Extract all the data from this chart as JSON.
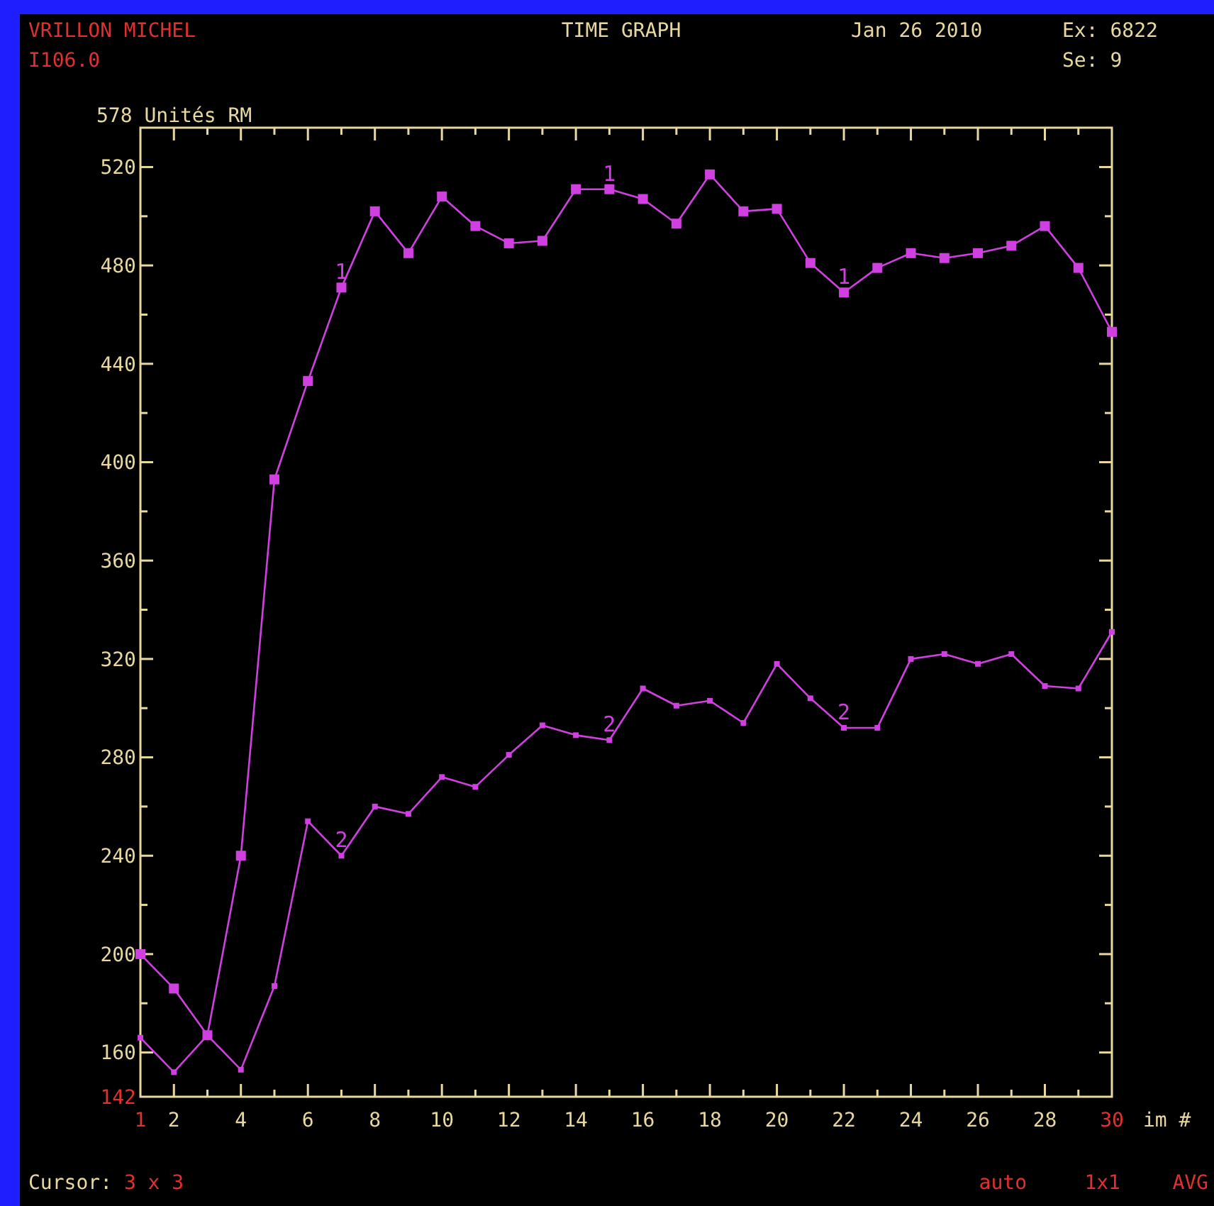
{
  "chart_data": {
    "type": "line",
    "title": "TIME GRAPH",
    "xlabel": "im #",
    "ylabel": "578 Unités RM",
    "annotations": [
      "VRILLON MICHEL",
      "I106.0",
      "Jan 26 2010",
      "Ex: 6822",
      "Se: 9",
      "Cursor: 3 x 3",
      "auto",
      "1x1",
      "AVG"
    ],
    "x": [
      1,
      2,
      3,
      4,
      5,
      6,
      7,
      8,
      9,
      10,
      11,
      12,
      13,
      14,
      15,
      16,
      17,
      18,
      19,
      20,
      21,
      22,
      23,
      24,
      25,
      26,
      27,
      28,
      29,
      30
    ],
    "series": [
      {
        "name": "1",
        "color": "#d040e0",
        "values": [
          200,
          186,
          167,
          240,
          393,
          433,
          471,
          502,
          485,
          508,
          496,
          489,
          490,
          511,
          511,
          507,
          497,
          517,
          502,
          503,
          481,
          469,
          479,
          485,
          483,
          485,
          488,
          496,
          479,
          453
        ]
      },
      {
        "name": "2",
        "color": "#d040e0",
        "values": [
          166,
          152,
          167,
          153,
          187,
          254,
          240,
          260,
          257,
          272,
          268,
          281,
          293,
          289,
          287,
          308,
          301,
          303,
          294,
          318,
          304,
          292,
          292,
          320,
          322,
          318,
          322,
          309,
          308,
          331
        ]
      }
    ],
    "xlim": [
      1,
      30
    ],
    "xticks": [
      1,
      2,
      {
        "value": 3,
        "label": null
      },
      4,
      {
        "value": 5,
        "label": null
      },
      6,
      {
        "value": 7,
        "label": null
      },
      8,
      {
        "value": 9,
        "label": null
      },
      10,
      {
        "value": 11,
        "label": null
      },
      12,
      {
        "value": 13,
        "label": null
      },
      14,
      {
        "value": 15,
        "label": null
      },
      16,
      {
        "value": 17,
        "label": null
      },
      18,
      {
        "value": 19,
        "label": null
      },
      20,
      {
        "value": 21,
        "label": null
      },
      22,
      {
        "value": 23,
        "label": null
      },
      24,
      {
        "value": 25,
        "label": null
      },
      26,
      {
        "value": 27,
        "label": null
      },
      28,
      {
        "value": 29,
        "label": null
      },
      30
    ],
    "ylim": [
      142,
      536
    ],
    "yticks": [
      142,
      160,
      {
        "value": 180,
        "label": null
      },
      200,
      {
        "value": 220,
        "label": null
      },
      240,
      {
        "value": 260,
        "label": null
      },
      280,
      {
        "value": 300,
        "label": null
      },
      320,
      {
        "value": 340,
        "label": null
      },
      360,
      {
        "value": 380,
        "label": null
      },
      400,
      {
        "value": 420,
        "label": null
      },
      440,
      {
        "value": 460,
        "label": null
      },
      480,
      {
        "value": 500,
        "label": null
      },
      520
    ],
    "marker": "square",
    "line_style": "solid",
    "grid": false,
    "legend": false
  }
}
